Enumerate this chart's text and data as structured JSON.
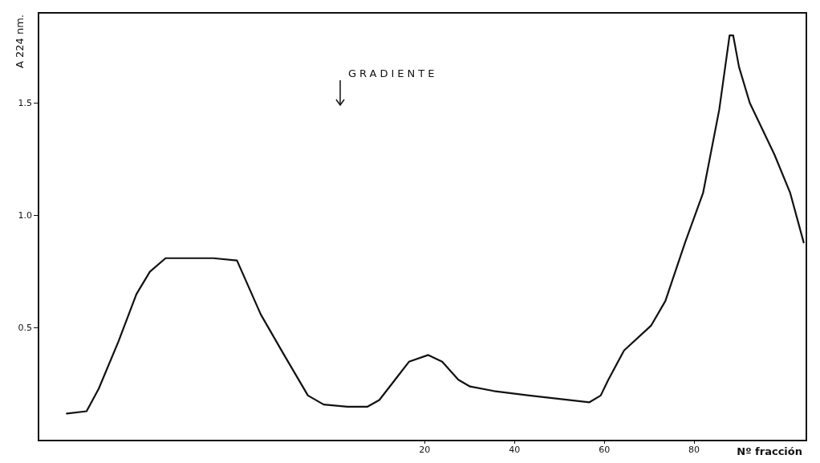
{
  "chart_data": {
    "type": "line",
    "xlabel": "Nº fracción",
    "ylabel": "A 224 nm.",
    "annotations": [
      "GRADIENTE"
    ],
    "xlim": [
      -66,
      105
    ],
    "xticks": [
      20,
      40,
      60,
      80
    ],
    "ylim": [
      0,
      1.9
    ],
    "yticks": [
      0.5,
      {
        "value": 1,
        "label": "1.0"
      },
      1.5
    ],
    "grid": false,
    "marker": "none",
    "line_style": "solid",
    "series": [
      {
        "color": "#111111",
        "x": [
          -59.7,
          -55.3,
          -52.6,
          -48.2,
          -44.2,
          -41.2,
          -37.7,
          -33.3,
          -27.1,
          -21.8,
          -16.5,
          -11.3,
          -6.0,
          -2.5,
          2.8,
          7.2,
          9.9,
          13.4,
          16.5,
          20.8,
          23.9,
          27.5,
          30.1,
          35.4,
          43.3,
          56.7,
          59.2,
          60.9,
          64.4,
          70.4,
          73.6,
          78.0,
          82.0,
          85.6,
          87.9,
          88.7,
          90.0,
          92.4,
          97.9,
          101.4,
          104.4
        ],
        "values": [
          0.12,
          0.13,
          0.23,
          0.44,
          0.65,
          0.75,
          0.81,
          0.81,
          0.81,
          0.8,
          0.56,
          0.38,
          0.2,
          0.16,
          0.15,
          0.15,
          0.18,
          0.27,
          0.35,
          0.38,
          0.35,
          0.27,
          0.24,
          0.22,
          0.2,
          0.17,
          0.2,
          0.27,
          0.4,
          0.51,
          0.62,
          0.88,
          1.1,
          1.47,
          1.8,
          1.8,
          1.66,
          1.5,
          1.27,
          1.1,
          0.88
        ]
      }
    ]
  }
}
